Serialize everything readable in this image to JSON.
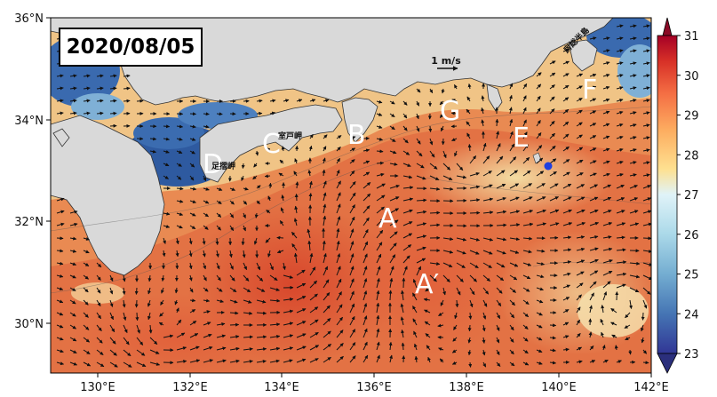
{
  "date": "2020/08/05",
  "lat_labels": [
    "36°N",
    "34°N",
    "32°N",
    "30°N"
  ],
  "lon_labels": [
    "130°E",
    "132°E",
    "134°E",
    "136°E",
    "138°E",
    "140°E",
    "142°E"
  ],
  "colorbar": {
    "min": 23,
    "max": 31,
    "ticks": [
      "31",
      "30",
      "29",
      "28",
      "27",
      "26",
      "25",
      "24",
      "23"
    ],
    "colors": [
      "#313695",
      "#4575b4",
      "#74add1",
      "#abd9e9",
      "#e0f3f8",
      "#fee090",
      "#fdae61",
      "#f46d43",
      "#d73027",
      "#a50026"
    ]
  },
  "scale": {
    "label": "1 m/s"
  },
  "region_labels": [
    "A",
    "A′",
    "B",
    "C",
    "D",
    "E",
    "F",
    "G"
  ],
  "place_names": {
    "muroto": "室戸岬",
    "ashizuri": "足摺岬",
    "boso": "房総半島"
  },
  "colors": {
    "land": "#d9d9d9",
    "marker": "#1f3fe0",
    "arrow": "#111111"
  }
}
